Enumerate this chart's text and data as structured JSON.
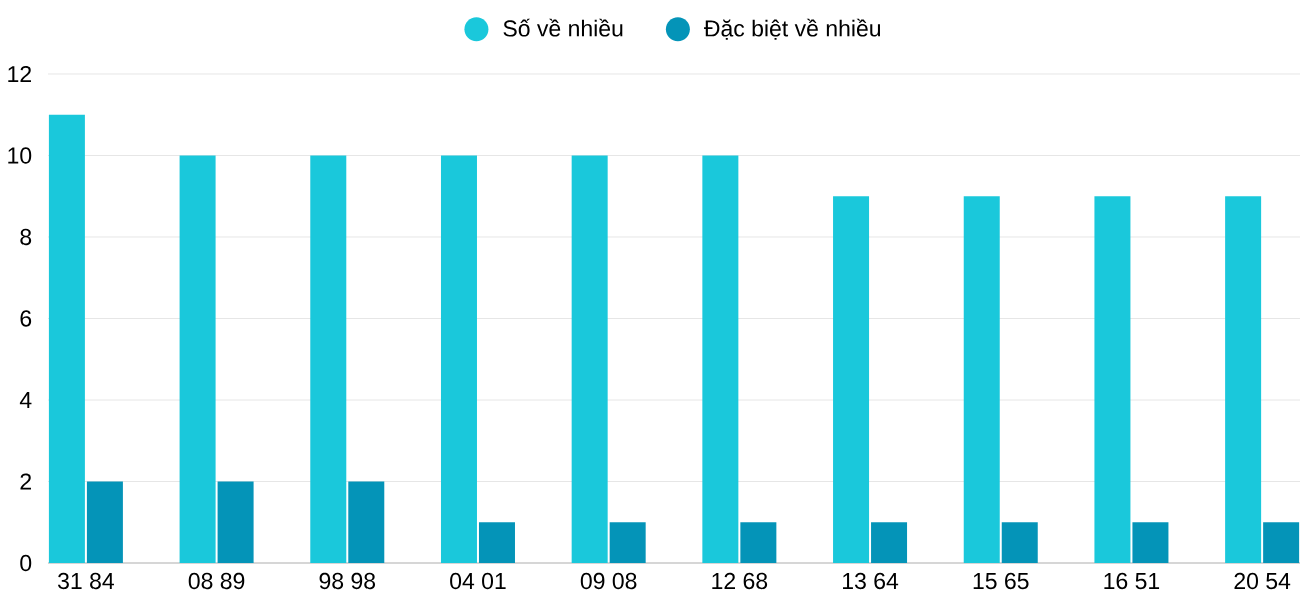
{
  "chart_data": {
    "type": "bar",
    "categories": [
      "31 84",
      "08 89",
      "98 98",
      "04 01",
      "09 08",
      "12 68",
      "13 64",
      "15 65",
      "16 51",
      "20 54"
    ],
    "series": [
      {
        "name": "Số về nhiều",
        "color": "#1ac8db",
        "values": [
          11,
          10,
          10,
          10,
          10,
          10,
          9,
          9,
          9,
          9
        ]
      },
      {
        "name": "Đặc biệt về nhiều",
        "color": "#0494b8",
        "values": [
          2,
          2,
          2,
          1,
          1,
          1,
          1,
          1,
          1,
          1
        ]
      }
    ],
    "ylim": [
      0,
      12
    ],
    "yticks": [
      0,
      2,
      4,
      6,
      8,
      10,
      12
    ],
    "grid": "y",
    "legend": "top"
  }
}
